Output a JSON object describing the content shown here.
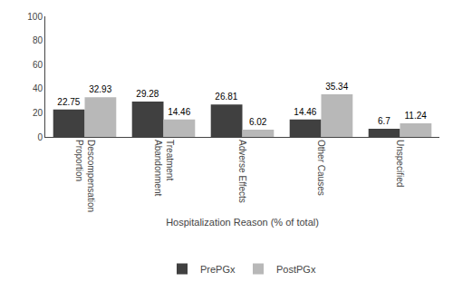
{
  "chart_data": {
    "type": "bar",
    "categories": [
      "Descompensation\nProportion",
      "Treatment\nAbandonment",
      "Adverse Effects",
      "Other Causes",
      "Unspecified"
    ],
    "series": [
      {
        "name": "PrePGx",
        "color": "#404040",
        "values": [
          22.75,
          29.28,
          26.81,
          14.46,
          6.7
        ]
      },
      {
        "name": "PostPGx",
        "color": "#b8b8b8",
        "values": [
          32.93,
          14.46,
          6.02,
          35.34,
          11.24
        ]
      }
    ],
    "xlabel": "Hospitalization Reason (% of total)",
    "ylim": [
      0,
      100
    ],
    "yticks": [
      0,
      20,
      40,
      60,
      80,
      100
    ],
    "grid": false,
    "legend": "bottom",
    "data_labels": true
  }
}
